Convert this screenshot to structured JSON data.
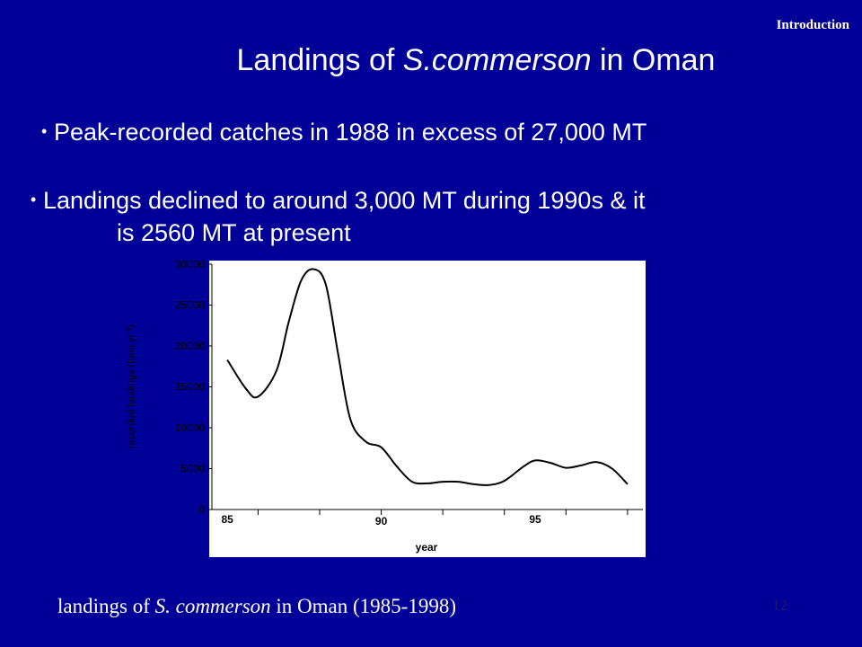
{
  "section_label": "Introduction",
  "title": {
    "prefix": "Landings of ",
    "species": "S.commerson",
    "suffix": " in Oman"
  },
  "bullets": [
    {
      "line1": "Peak-recorded catches in 1988 in excess of 27,000 MT"
    },
    {
      "line1": "Landings declined to around 3,000 MT during 1990s & it",
      "line2": "is 2560 MT at present"
    }
  ],
  "chart_data": {
    "type": "line",
    "xlabel": "year",
    "ylabel": "recorded landings (tons yr",
    "ylabel_superscript": "-1",
    "ylabel_close": ")",
    "x_range": [
      84.5,
      98.5
    ],
    "ylim": [
      0,
      30000
    ],
    "y_ticks": [
      "0",
      "5000",
      "10000",
      "15000",
      "20000",
      "25000",
      "30000"
    ],
    "y_tick_values": [
      0,
      5000,
      10000,
      15000,
      20000,
      25000,
      30000
    ],
    "x_tick_labels": [
      {
        "label": "85",
        "value": 85
      },
      {
        "label": "90",
        "value": 90
      },
      {
        "label": "95",
        "value": 95
      }
    ],
    "x_tick_marks": [
      86,
      88,
      90,
      92,
      94,
      96,
      98
    ],
    "line_color": "#ffffff",
    "background": "#ffffff",
    "grid": false,
    "series": [
      {
        "x": [
          85,
          85.6,
          86,
          86.6,
          87,
          87.4,
          87.8,
          88.2,
          88.6,
          89,
          89.5,
          90,
          90.5,
          91,
          91.5,
          92,
          92.5,
          93,
          93.5,
          94,
          94.6,
          95,
          95.5,
          96,
          96.5,
          97,
          97.5,
          98
        ],
        "y": [
          18300,
          14800,
          13800,
          17000,
          23000,
          28000,
          29400,
          27500,
          19000,
          11000,
          8300,
          7600,
          5300,
          3400,
          3200,
          3400,
          3400,
          3100,
          3000,
          3500,
          5200,
          6000,
          5700,
          5100,
          5400,
          5800,
          5000,
          3100
        ]
      }
    ]
  },
  "caption": {
    "prefix": "landings of ",
    "species": "S. commerson",
    "suffix": " in Oman (1985-1998)"
  },
  "page_number": "12",
  "colors": {
    "background": "#000099",
    "text": "#ffffff",
    "page_number": "#1a1a6a"
  }
}
